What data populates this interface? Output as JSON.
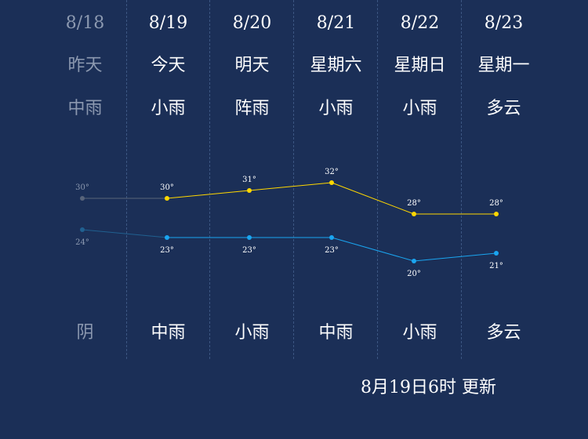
{
  "days": [
    {
      "date": "8/18",
      "weekday": "昨天",
      "day_weather": "中雨",
      "night_weather": "阴",
      "high": 30,
      "low": 24,
      "high_label": "30°",
      "low_label": "24°",
      "past": true
    },
    {
      "date": "8/19",
      "weekday": "今天",
      "day_weather": "小雨",
      "night_weather": "中雨",
      "high": 30,
      "low": 23,
      "high_label": "30°",
      "low_label": "23°",
      "past": false
    },
    {
      "date": "8/20",
      "weekday": "明天",
      "day_weather": "阵雨",
      "night_weather": "小雨",
      "high": 31,
      "low": 23,
      "high_label": "31°",
      "low_label": "23°",
      "past": false
    },
    {
      "date": "8/21",
      "weekday": "星期六",
      "day_weather": "小雨",
      "night_weather": "中雨",
      "high": 32,
      "low": 23,
      "high_label": "32°",
      "low_label": "23°",
      "past": false
    },
    {
      "date": "8/22",
      "weekday": "星期日",
      "day_weather": "小雨",
      "night_weather": "小雨",
      "high": 28,
      "low": 20,
      "high_label": "28°",
      "low_label": "20°",
      "past": false
    },
    {
      "date": "8/23",
      "weekday": "星期一",
      "day_weather": "多云",
      "night_weather": "多云",
      "high": 28,
      "low": 21,
      "high_label": "28°",
      "low_label": "21°",
      "past": false
    }
  ],
  "colors": {
    "background": "#1b2f57",
    "high_line": "#ffd700",
    "low_line": "#1aa5f0",
    "past_line": "#58647a",
    "past_low_line": "#206090",
    "past_text": "#8c99b0"
  },
  "chart_data": {
    "type": "line",
    "categories": [
      "8/18",
      "8/19",
      "8/20",
      "8/21",
      "8/22",
      "8/23"
    ],
    "series": [
      {
        "values": [
          30,
          30,
          31,
          32,
          28,
          28
        ]
      },
      {
        "values": [
          24,
          23,
          23,
          23,
          20,
          21
        ]
      }
    ]
  },
  "update_text": "8月19日6时 更新"
}
